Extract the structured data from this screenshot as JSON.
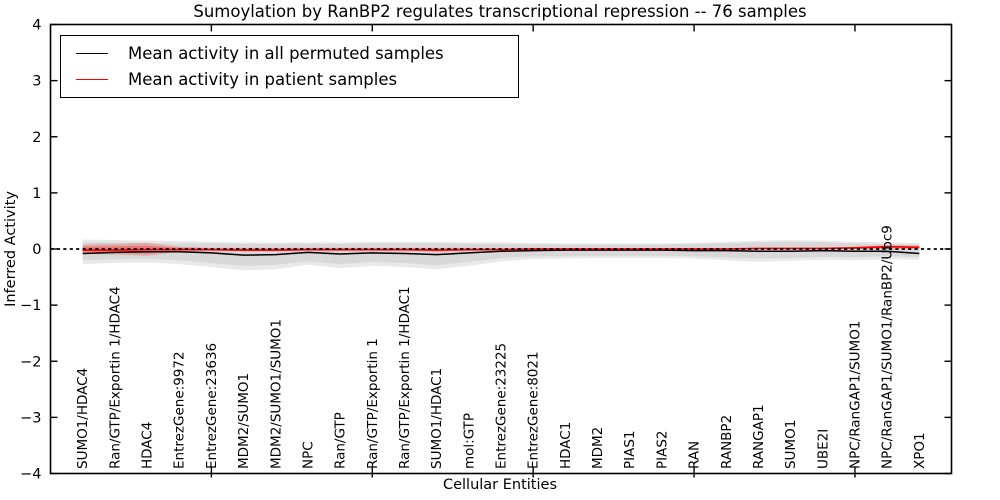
{
  "chart_data": {
    "type": "line",
    "title": "Sumoylation by RanBP2 regulates transcriptional repression -- 76 samples",
    "xlabel": "Cellular Entities",
    "ylabel": "Inferred Activity",
    "ylim": [
      -4,
      4
    ],
    "yticks": [
      -4,
      -3,
      -2,
      -1,
      0,
      1,
      2,
      3,
      4
    ],
    "xtick_indices": [
      4,
      9,
      14,
      19,
      24
    ],
    "grid": false,
    "legend_position": "upper left",
    "categories": [
      "SUMO1/HDAC4",
      "Ran/GTP/Exportin 1/HDAC4",
      "HDAC4",
      "EntrezGene:9972",
      "EntrezGene:23636",
      "MDM2/SUMO1",
      "MDM2/SUMO1/SUMO1",
      "NPC",
      "Ran/GTP",
      "Ran/GTP/Exportin 1",
      "Ran/GTP/Exportin 1/HDAC1",
      "SUMO1/HDAC1",
      "mol:GTP",
      "EntrezGene:23225",
      "EntrezGene:8021",
      "HDAC1",
      "MDM2",
      "PIAS1",
      "PIAS2",
      "RAN",
      "RANBP2",
      "RANGAP1",
      "SUMO1",
      "UBE2I",
      "NPC/RanGAP1/SUMO1",
      "NPC/RanGAP1/SUMO1/RanBP2/Ubc9",
      "XPO1"
    ],
    "series": [
      {
        "name": "Mean activity in all permuted samples",
        "color": "#000000",
        "values": [
          -0.08,
          -0.06,
          -0.05,
          -0.05,
          -0.07,
          -0.11,
          -0.1,
          -0.06,
          -0.09,
          -0.07,
          -0.08,
          -0.1,
          -0.07,
          -0.04,
          -0.03,
          -0.02,
          -0.02,
          -0.02,
          -0.02,
          -0.03,
          -0.03,
          -0.04,
          -0.04,
          -0.03,
          -0.04,
          -0.04,
          -0.08
        ]
      },
      {
        "name": "Mean activity in patient samples",
        "color": "#ff0000",
        "values": [
          -0.02,
          -0.02,
          -0.01,
          -0.01,
          -0.01,
          -0.02,
          -0.02,
          -0.01,
          -0.01,
          -0.01,
          -0.01,
          -0.02,
          -0.01,
          -0.01,
          0.0,
          0.0,
          0.0,
          0.0,
          0.0,
          0.0,
          0.0,
          0.01,
          0.01,
          0.01,
          0.02,
          0.04,
          0.03
        ]
      }
    ],
    "bands": [
      {
        "name": "permuted-range-outer",
        "color": "#c8c8c8",
        "opacity": 0.4,
        "upper": [
          0.17,
          0.16,
          0.15,
          0.14,
          0.13,
          0.12,
          0.12,
          0.12,
          0.12,
          0.13,
          0.13,
          0.13,
          0.12,
          0.12,
          0.11,
          0.1,
          0.1,
          0.1,
          0.1,
          0.11,
          0.13,
          0.15,
          0.16,
          0.15,
          0.13,
          0.12,
          0.11
        ],
        "lower": [
          -0.27,
          -0.25,
          -0.24,
          -0.27,
          -0.32,
          -0.38,
          -0.36,
          -0.28,
          -0.34,
          -0.3,
          -0.32,
          -0.36,
          -0.3,
          -0.22,
          -0.18,
          -0.17,
          -0.16,
          -0.16,
          -0.16,
          -0.17,
          -0.2,
          -0.23,
          -0.21,
          -0.19,
          -0.2,
          -0.18,
          -0.19
        ]
      },
      {
        "name": "permuted-range-inner",
        "color": "#c8c8c8",
        "opacity": 0.5,
        "upper": [
          0.12,
          0.12,
          0.11,
          0.1,
          0.1,
          0.09,
          0.09,
          0.09,
          0.09,
          0.1,
          0.1,
          0.1,
          0.09,
          0.09,
          0.08,
          0.08,
          0.08,
          0.08,
          0.08,
          0.09,
          0.1,
          0.12,
          0.13,
          0.12,
          0.1,
          0.09,
          0.08
        ],
        "lower": [
          -0.2,
          -0.18,
          -0.17,
          -0.2,
          -0.25,
          -0.3,
          -0.28,
          -0.22,
          -0.27,
          -0.23,
          -0.25,
          -0.29,
          -0.23,
          -0.16,
          -0.13,
          -0.13,
          -0.12,
          -0.12,
          -0.12,
          -0.13,
          -0.15,
          -0.17,
          -0.16,
          -0.14,
          -0.15,
          -0.13,
          -0.14
        ]
      },
      {
        "name": "patient-range-outer",
        "color": "#ee3333",
        "opacity": 0.28,
        "upper": [
          0.08,
          0.09,
          0.11,
          0.04,
          0.02,
          0.02,
          0.02,
          0.02,
          0.02,
          0.02,
          0.02,
          0.02,
          0.02,
          0.01,
          0.01,
          0.01,
          0.01,
          0.01,
          0.01,
          0.01,
          0.01,
          0.02,
          0.02,
          0.02,
          0.04,
          0.07,
          0.06
        ],
        "lower": [
          -0.09,
          -0.1,
          -0.12,
          -0.05,
          -0.04,
          -0.04,
          -0.04,
          -0.04,
          -0.04,
          -0.04,
          -0.04,
          -0.05,
          -0.04,
          -0.03,
          -0.02,
          -0.02,
          -0.02,
          -0.02,
          -0.02,
          -0.02,
          -0.02,
          -0.01,
          -0.01,
          -0.01,
          0.0,
          0.01,
          0.0
        ],
        "legend": "upper left"
      },
      {
        "name": "patient-range-inner",
        "color": "#ee3333",
        "opacity": 0.38,
        "upper": [
          0.04,
          0.05,
          0.06,
          0.02,
          0.01,
          0.01,
          0.01,
          0.01,
          0.01,
          0.01,
          0.01,
          0.01,
          0.01,
          0.01,
          0.01,
          0.01,
          0.01,
          0.01,
          0.01,
          0.01,
          0.01,
          0.01,
          0.02,
          0.02,
          0.03,
          0.05,
          0.04
        ],
        "lower": [
          -0.05,
          -0.06,
          -0.08,
          -0.03,
          -0.02,
          -0.03,
          -0.03,
          -0.02,
          -0.03,
          -0.02,
          -0.02,
          -0.03,
          -0.02,
          -0.02,
          -0.01,
          -0.01,
          -0.01,
          -0.01,
          -0.01,
          -0.01,
          -0.01,
          0.0,
          0.0,
          0.0,
          0.01,
          0.03,
          0.02
        ]
      }
    ],
    "zero_line": {
      "y": 0,
      "style": "dashed",
      "color": "#000000"
    }
  },
  "colors": {
    "axes": "#000000",
    "background": "#ffffff"
  }
}
